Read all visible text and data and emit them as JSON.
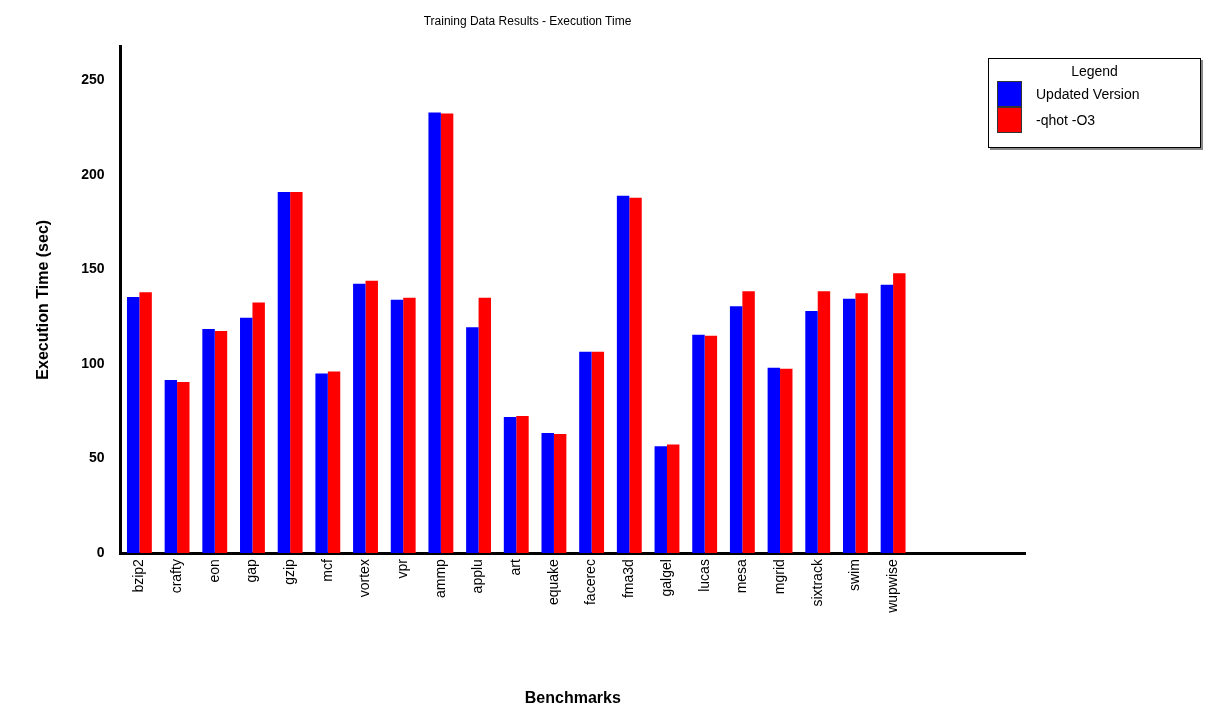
{
  "chart_data": {
    "type": "bar",
    "title": "Training Data Results - Execution Time",
    "xlabel": "Benchmarks",
    "ylabel": "Execution Time (sec)",
    "legend_title": "Legend",
    "categories": [
      "bzip2",
      "crafty",
      "eon",
      "gap",
      "gzip",
      "mcf",
      "vortex",
      "vpr",
      "ammp",
      "applu",
      "art",
      "equake",
      "facerec",
      "fma3d",
      "galgel",
      "lucas",
      "mesa",
      "mgrid",
      "sixtrack",
      "swim",
      "wupwise",
      null,
      null,
      null
    ],
    "series": [
      {
        "name": "Updated Version",
        "color": "#0000ff",
        "values": [
          135.5,
          91.5,
          118.5,
          124.5,
          191,
          95,
          142.5,
          134,
          233,
          119.5,
          72,
          63.5,
          106.5,
          189,
          56.5,
          115.5,
          130.5,
          98,
          128,
          134.5,
          142,
          null,
          null,
          null
        ]
      },
      {
        "name": "-qhot -O3",
        "color": "#ff0000",
        "values": [
          138,
          90.5,
          117.5,
          132.5,
          191,
          96,
          144,
          135,
          232.5,
          135,
          72.5,
          63,
          106.5,
          188,
          57.5,
          115,
          138.5,
          97.5,
          138.5,
          137.5,
          148,
          null,
          null,
          null
        ]
      }
    ],
    "ylim": [
      0,
      268
    ],
    "yticks": [
      0,
      50,
      100,
      150,
      200,
      250
    ],
    "grid": false,
    "legend": "top right"
  }
}
